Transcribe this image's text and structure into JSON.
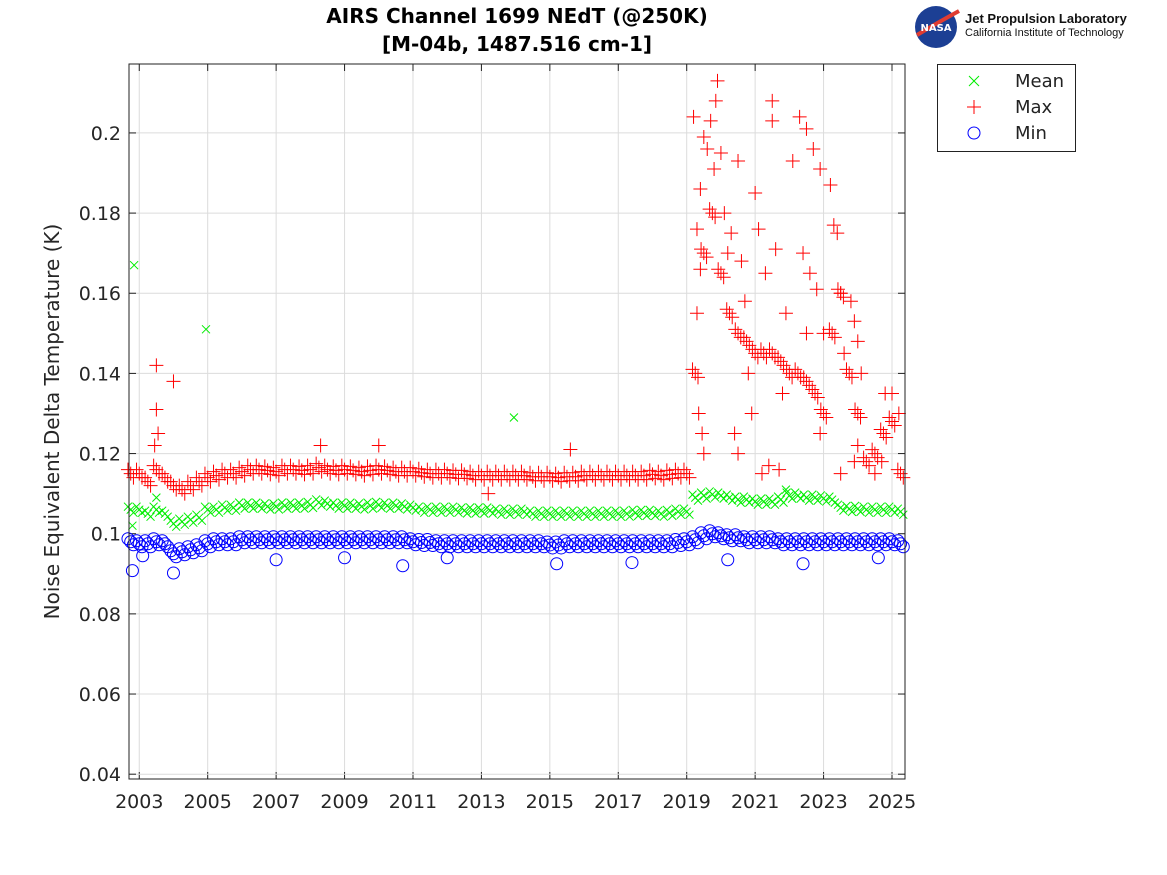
{
  "chart_data": {
    "type": "scatter",
    "title": "AIRS Channel 1699 NEdT (@250K)",
    "subtitle": "[M-04b, 1487.516 cm-1]",
    "ylabel": "Noise Equivalent Delta Temperature (K)",
    "xlabel": "",
    "xlim": [
      2002.7,
      2025.38
    ],
    "ylim": [
      0.0388,
      0.2172
    ],
    "xticks": [
      2003,
      2005,
      2007,
      2009,
      2011,
      2013,
      2015,
      2017,
      2019,
      2021,
      2023,
      2025
    ],
    "xtick_labels": [
      "2003",
      "2005",
      "2007",
      "2009",
      "2011",
      "2013",
      "2015",
      "2017",
      "2019",
      "2021",
      "2023",
      "2025"
    ],
    "yticks": [
      0.04,
      0.06,
      0.08,
      0.1,
      0.12,
      0.14,
      0.16,
      0.18,
      0.2
    ],
    "ytick_labels": [
      "0.04",
      "0.06",
      "0.08",
      "0.1",
      "0.12",
      "0.14",
      "0.16",
      "0.18",
      "0.2"
    ],
    "grid": true,
    "legend_position": "outside-top-right",
    "x": [
      2002.75,
      2003,
      2003.25,
      2003.5,
      2003.75,
      2004,
      2004.25,
      2004.5,
      2004.75,
      2005,
      2005.25,
      2005.5,
      2005.75,
      2006,
      2006.25,
      2006.5,
      2006.75,
      2007,
      2007.25,
      2007.5,
      2007.75,
      2008,
      2008.25,
      2008.5,
      2008.75,
      2009,
      2009.25,
      2009.5,
      2009.75,
      2010,
      2010.25,
      2010.5,
      2010.75,
      2011,
      2011.25,
      2011.5,
      2011.75,
      2012,
      2012.25,
      2012.5,
      2012.75,
      2013,
      2013.25,
      2013.5,
      2013.75,
      2014,
      2014.25,
      2014.5,
      2014.75,
      2015,
      2015.25,
      2015.5,
      2015.75,
      2016,
      2016.25,
      2016.5,
      2016.75,
      2017,
      2017.25,
      2017.5,
      2017.75,
      2018,
      2018.25,
      2018.5,
      2018.75,
      2019,
      2019.25,
      2019.5,
      2019.75,
      2020,
      2020.25,
      2020.5,
      2020.75,
      2021,
      2021.25,
      2021.5,
      2021.75,
      2022,
      2022.25,
      2022.5,
      2022.75,
      2023,
      2023.25,
      2023.5,
      2023.75,
      2024,
      2024.25,
      2024.5,
      2024.75,
      2025,
      2025.25
    ],
    "series": [
      {
        "name": "Mean",
        "marker": "x",
        "color": "#00ee00",
        "values": [
          0.106,
          0.106,
          0.105,
          0.106,
          0.105,
          0.1025,
          0.103,
          0.1035,
          0.104,
          0.106,
          0.106,
          0.1065,
          0.1065,
          0.107,
          0.107,
          0.107,
          0.1068,
          0.1068,
          0.107,
          0.107,
          0.107,
          0.1072,
          0.1078,
          0.1075,
          0.107,
          0.107,
          0.107,
          0.1068,
          0.107,
          0.1072,
          0.107,
          0.107,
          0.1068,
          0.1065,
          0.106,
          0.106,
          0.106,
          0.106,
          0.106,
          0.1058,
          0.1058,
          0.1058,
          0.1058,
          0.1055,
          0.1055,
          0.1055,
          0.1055,
          0.105,
          0.105,
          0.105,
          0.105,
          0.105,
          0.105,
          0.105,
          0.105,
          0.105,
          0.105,
          0.105,
          0.105,
          0.1052,
          0.1052,
          0.1052,
          0.105,
          0.1052,
          0.1055,
          0.1055,
          0.109,
          0.1095,
          0.1098,
          0.1095,
          0.109,
          0.1085,
          0.1085,
          0.108,
          0.108,
          0.108,
          0.1085,
          0.1095,
          0.1095,
          0.109,
          0.109,
          0.1088,
          0.1085,
          0.1065,
          0.1062,
          0.1062,
          0.106,
          0.106,
          0.106,
          0.106,
          0.1055
        ],
        "outliers": [
          [
            2002.85,
            0.167
          ],
          [
            2004.95,
            0.151
          ],
          [
            2013.95,
            0.129
          ],
          [
            2003.5,
            0.109
          ],
          [
            2021.9,
            0.111
          ],
          [
            2002.8,
            0.102
          ]
        ]
      },
      {
        "name": "Max",
        "marker": "+",
        "color": "#ff0000",
        "values": [
          0.115,
          0.115,
          0.113,
          0.116,
          0.114,
          0.112,
          0.111,
          0.112,
          0.113,
          0.114,
          0.1145,
          0.115,
          0.115,
          0.1155,
          0.116,
          0.116,
          0.1158,
          0.1155,
          0.116,
          0.116,
          0.1158,
          0.116,
          0.1165,
          0.116,
          0.1158,
          0.116,
          0.1158,
          0.1155,
          0.1158,
          0.116,
          0.1158,
          0.1155,
          0.1155,
          0.1155,
          0.1152,
          0.115,
          0.115,
          0.115,
          0.1148,
          0.1148,
          0.1145,
          0.1145,
          0.1145,
          0.1145,
          0.1145,
          0.1145,
          0.1145,
          0.1142,
          0.1142,
          0.1142,
          0.114,
          0.1142,
          0.1142,
          0.1145,
          0.1145,
          0.1145,
          0.1145,
          0.1145,
          0.1145,
          0.1145,
          0.1145,
          0.1148,
          0.1145,
          0.1148,
          0.115,
          0.115,
          0.14,
          0.17,
          0.18,
          0.165,
          0.155,
          0.15,
          0.148,
          0.145,
          0.145,
          0.145,
          0.143,
          0.14,
          0.14,
          0.138,
          0.135,
          0.13,
          0.15,
          0.16,
          0.14,
          0.13,
          0.118,
          0.12,
          0.125,
          0.128,
          0.115
        ],
        "outliers": [
          [
            2003.5,
            0.142
          ],
          [
            2003.5,
            0.131
          ],
          [
            2003.55,
            0.125
          ],
          [
            2003.45,
            0.122
          ],
          [
            2004.0,
            0.138
          ],
          [
            2008.3,
            0.122
          ],
          [
            2010.0,
            0.122
          ],
          [
            2015.6,
            0.121
          ],
          [
            2013.2,
            0.11
          ],
          [
            2019.2,
            0.204
          ],
          [
            2019.7,
            0.203
          ],
          [
            2019.9,
            0.213
          ],
          [
            2019.85,
            0.208
          ],
          [
            2019.5,
            0.199
          ],
          [
            2019.6,
            0.196
          ],
          [
            2019.8,
            0.191
          ],
          [
            2019.4,
            0.186
          ],
          [
            2019.3,
            0.176
          ],
          [
            2019.4,
            0.166
          ],
          [
            2019.3,
            0.155
          ],
          [
            2019.35,
            0.13
          ],
          [
            2019.45,
            0.125
          ],
          [
            2019.5,
            0.12
          ],
          [
            2020.0,
            0.195
          ],
          [
            2020.1,
            0.18
          ],
          [
            2020.3,
            0.175
          ],
          [
            2020.2,
            0.17
          ],
          [
            2020.5,
            0.193
          ],
          [
            2020.6,
            0.168
          ],
          [
            2020.7,
            0.158
          ],
          [
            2020.4,
            0.125
          ],
          [
            2020.5,
            0.12
          ],
          [
            2020.8,
            0.14
          ],
          [
            2021.0,
            0.185
          ],
          [
            2021.1,
            0.176
          ],
          [
            2021.3,
            0.165
          ],
          [
            2021.5,
            0.208
          ],
          [
            2021.5,
            0.203
          ],
          [
            2021.2,
            0.115
          ],
          [
            2021.4,
            0.117
          ],
          [
            2021.7,
            0.116
          ],
          [
            2021.6,
            0.171
          ],
          [
            2021.9,
            0.155
          ],
          [
            2022.1,
            0.193
          ],
          [
            2022.3,
            0.204
          ],
          [
            2022.5,
            0.201
          ],
          [
            2022.4,
            0.17
          ],
          [
            2022.6,
            0.165
          ],
          [
            2022.7,
            0.196
          ],
          [
            2022.9,
            0.191
          ],
          [
            2022.8,
            0.161
          ],
          [
            2023.0,
            0.15
          ],
          [
            2023.2,
            0.187
          ],
          [
            2023.3,
            0.177
          ],
          [
            2023.4,
            0.175
          ],
          [
            2023.5,
            0.16
          ],
          [
            2023.6,
            0.145
          ],
          [
            2023.8,
            0.158
          ],
          [
            2023.9,
            0.153
          ],
          [
            2024.0,
            0.148
          ],
          [
            2024.1,
            0.14
          ],
          [
            2024.0,
            0.122
          ],
          [
            2023.5,
            0.115
          ],
          [
            2024.5,
            0.115
          ],
          [
            2024.8,
            0.135
          ],
          [
            2025.0,
            0.135
          ],
          [
            2025.2,
            0.13
          ],
          [
            2022.5,
            0.15
          ],
          [
            2021.8,
            0.135
          ],
          [
            2020.9,
            0.13
          ],
          [
            2022.9,
            0.125
          ],
          [
            2023.9,
            0.118
          ],
          [
            2024.7,
            0.118
          ]
        ]
      },
      {
        "name": "Min",
        "marker": "o",
        "color": "#0000ff",
        "values": [
          0.098,
          0.0975,
          0.0975,
          0.098,
          0.0975,
          0.095,
          0.0955,
          0.096,
          0.0965,
          0.0975,
          0.098,
          0.098,
          0.098,
          0.0985,
          0.0985,
          0.0985,
          0.0985,
          0.0985,
          0.0985,
          0.0985,
          0.0985,
          0.0985,
          0.0985,
          0.0985,
          0.0985,
          0.0985,
          0.0985,
          0.0985,
          0.0985,
          0.0985,
          0.0985,
          0.0985,
          0.0985,
          0.098,
          0.0978,
          0.0978,
          0.0975,
          0.0975,
          0.0975,
          0.0975,
          0.0975,
          0.0975,
          0.0975,
          0.0975,
          0.0975,
          0.0975,
          0.0975,
          0.0975,
          0.0975,
          0.0972,
          0.0972,
          0.0975,
          0.0975,
          0.0975,
          0.0975,
          0.0975,
          0.0975,
          0.0975,
          0.0975,
          0.0975,
          0.0975,
          0.0975,
          0.0975,
          0.0975,
          0.0978,
          0.098,
          0.0985,
          0.0995,
          0.1,
          0.0995,
          0.099,
          0.099,
          0.0985,
          0.0985,
          0.0985,
          0.0985,
          0.098,
          0.098,
          0.098,
          0.098,
          0.098,
          0.098,
          0.098,
          0.098,
          0.098,
          0.098,
          0.098,
          0.098,
          0.098,
          0.098,
          0.0975
        ],
        "outliers": [
          [
            2002.8,
            0.0908
          ],
          [
            2004.0,
            0.0902
          ],
          [
            2010.7,
            0.092
          ],
          [
            2015.2,
            0.0925
          ],
          [
            2022.4,
            0.0925
          ],
          [
            2003.1,
            0.0945
          ],
          [
            2007.0,
            0.0935
          ],
          [
            2009.0,
            0.094
          ],
          [
            2012.0,
            0.094
          ],
          [
            2017.4,
            0.0928
          ],
          [
            2020.2,
            0.0935
          ],
          [
            2024.6,
            0.094
          ]
        ]
      }
    ]
  },
  "logo": {
    "line1": "Jet Propulsion Laboratory",
    "line2": "California Institute of Technology",
    "nasa": "NASA"
  }
}
